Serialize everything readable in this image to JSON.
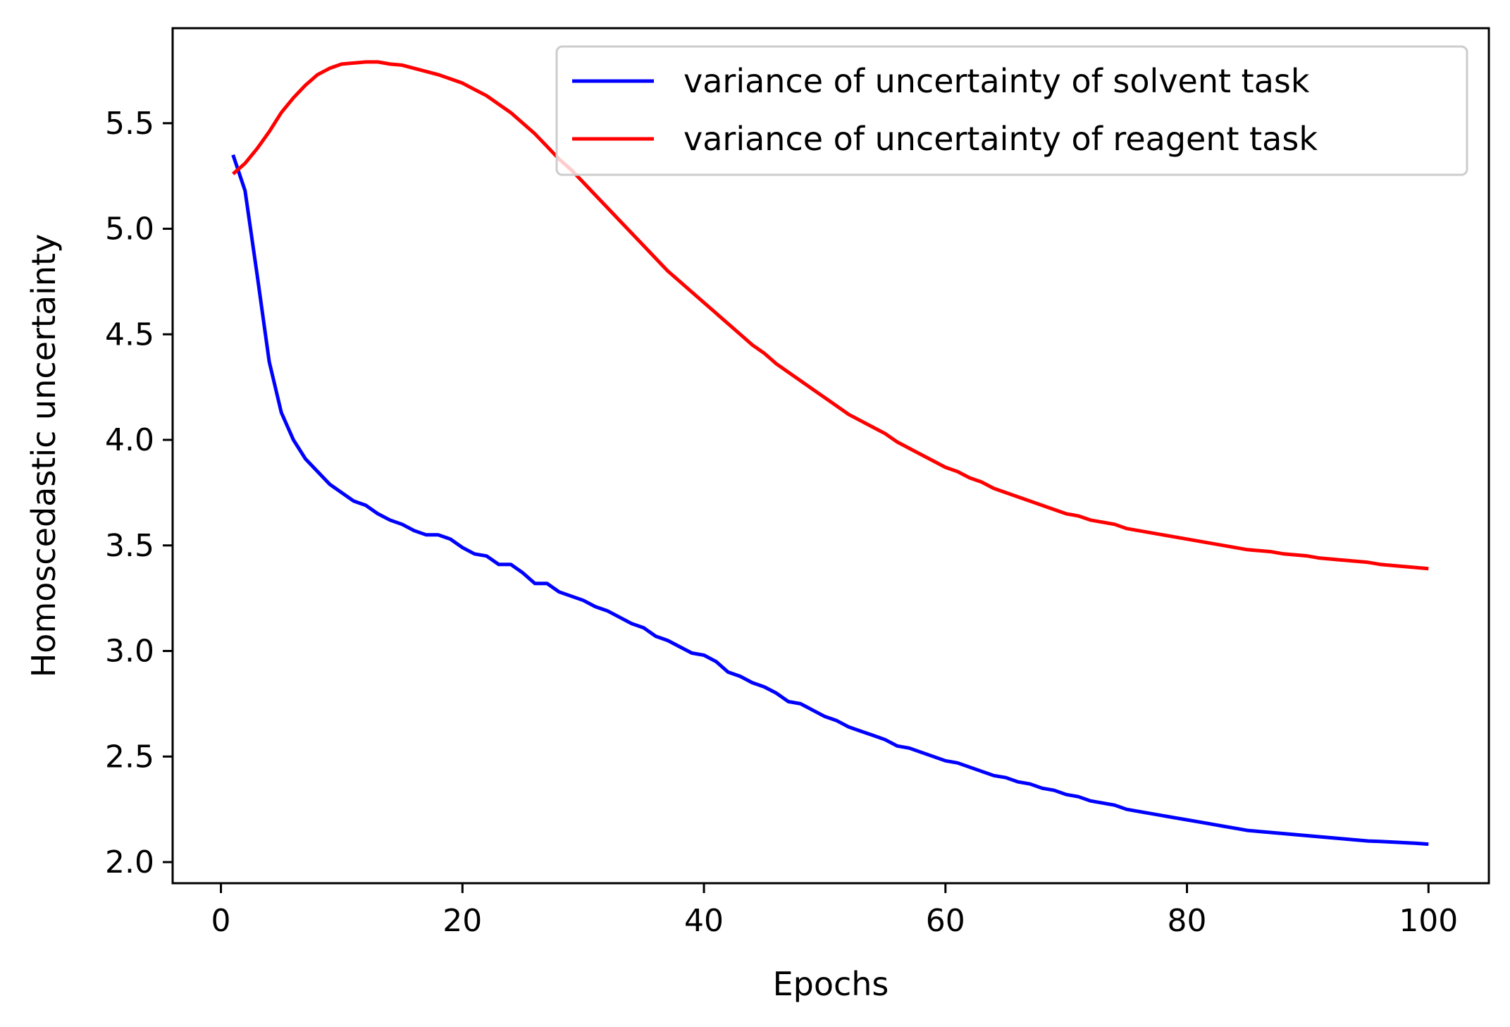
{
  "chart_data": {
    "type": "line",
    "title": "",
    "xlabel": "Epochs",
    "ylabel": "Homoscedastic uncertainty",
    "xlim": [
      -4,
      105
    ],
    "ylim": [
      1.9,
      5.95
    ],
    "x_ticks": [
      0,
      20,
      40,
      60,
      80,
      100
    ],
    "x_tick_labels": [
      "0",
      "20",
      "40",
      "60",
      "80",
      "100"
    ],
    "y_ticks": [
      2.0,
      2.5,
      3.0,
      3.5,
      4.0,
      4.5,
      5.0,
      5.5
    ],
    "y_tick_labels": [
      "2.0",
      "2.5",
      "3.0",
      "3.5",
      "4.0",
      "4.5",
      "5.0",
      "5.5"
    ],
    "grid": false,
    "legend_position": "top-right",
    "series": [
      {
        "name": "variance of uncertainty of solvent task",
        "color": "#0000ff",
        "x": [
          1,
          2,
          3,
          4,
          5,
          6,
          7,
          8,
          9,
          10,
          11,
          12,
          13,
          14,
          15,
          16,
          17,
          18,
          19,
          20,
          21,
          22,
          23,
          24,
          25,
          26,
          27,
          28,
          29,
          30,
          31,
          32,
          33,
          34,
          35,
          36,
          37,
          38,
          39,
          40,
          41,
          42,
          43,
          44,
          45,
          46,
          47,
          48,
          49,
          50,
          51,
          52,
          53,
          54,
          55,
          56,
          57,
          58,
          59,
          60,
          61,
          62,
          63,
          64,
          65,
          66,
          67,
          68,
          69,
          70,
          71,
          72,
          73,
          74,
          75,
          76,
          77,
          78,
          79,
          80,
          81,
          82,
          83,
          84,
          85,
          86,
          87,
          88,
          89,
          90,
          91,
          92,
          93,
          94,
          95,
          96,
          97,
          98,
          99,
          100
        ],
        "y": [
          5.35,
          5.18,
          4.78,
          4.37,
          4.13,
          4.0,
          3.91,
          3.85,
          3.79,
          3.75,
          3.71,
          3.69,
          3.65,
          3.62,
          3.6,
          3.57,
          3.55,
          3.55,
          3.53,
          3.49,
          3.46,
          3.45,
          3.41,
          3.41,
          3.37,
          3.32,
          3.32,
          3.28,
          3.26,
          3.24,
          3.21,
          3.19,
          3.16,
          3.13,
          3.11,
          3.07,
          3.05,
          3.02,
          2.99,
          2.98,
          2.95,
          2.9,
          2.88,
          2.85,
          2.83,
          2.8,
          2.76,
          2.75,
          2.72,
          2.69,
          2.67,
          2.64,
          2.62,
          2.6,
          2.58,
          2.55,
          2.54,
          2.52,
          2.5,
          2.48,
          2.47,
          2.45,
          2.43,
          2.41,
          2.4,
          2.38,
          2.37,
          2.35,
          2.34,
          2.32,
          2.31,
          2.29,
          2.28,
          2.27,
          2.25,
          2.24,
          2.23,
          2.22,
          2.21,
          2.2,
          2.19,
          2.18,
          2.17,
          2.16,
          2.15,
          2.145,
          2.14,
          2.135,
          2.13,
          2.125,
          2.12,
          2.115,
          2.11,
          2.105,
          2.1,
          2.098,
          2.095,
          2.092,
          2.089,
          2.085
        ]
      },
      {
        "name": "variance of uncertainty of reagent task",
        "color": "#ff0000",
        "x": [
          1,
          2,
          3,
          4,
          5,
          6,
          7,
          8,
          9,
          10,
          11,
          12,
          13,
          14,
          15,
          16,
          17,
          18,
          19,
          20,
          21,
          22,
          23,
          24,
          25,
          26,
          27,
          28,
          29,
          30,
          31,
          32,
          33,
          34,
          35,
          36,
          37,
          38,
          39,
          40,
          41,
          42,
          43,
          44,
          45,
          46,
          47,
          48,
          49,
          50,
          51,
          52,
          53,
          54,
          55,
          56,
          57,
          58,
          59,
          60,
          61,
          62,
          63,
          64,
          65,
          66,
          67,
          68,
          69,
          70,
          71,
          72,
          73,
          74,
          75,
          76,
          77,
          78,
          79,
          80,
          81,
          82,
          83,
          84,
          85,
          86,
          87,
          88,
          89,
          90,
          91,
          92,
          93,
          94,
          95,
          96,
          97,
          98,
          99,
          100
        ],
        "y": [
          5.26,
          5.31,
          5.38,
          5.46,
          5.55,
          5.62,
          5.68,
          5.73,
          5.76,
          5.78,
          5.785,
          5.79,
          5.79,
          5.78,
          5.775,
          5.76,
          5.745,
          5.73,
          5.71,
          5.69,
          5.66,
          5.63,
          5.59,
          5.55,
          5.5,
          5.45,
          5.39,
          5.33,
          5.28,
          5.22,
          5.16,
          5.1,
          5.04,
          4.98,
          4.92,
          4.86,
          4.8,
          4.75,
          4.7,
          4.65,
          4.6,
          4.55,
          4.5,
          4.45,
          4.41,
          4.36,
          4.32,
          4.28,
          4.24,
          4.2,
          4.16,
          4.12,
          4.09,
          4.06,
          4.03,
          3.99,
          3.96,
          3.93,
          3.9,
          3.87,
          3.85,
          3.82,
          3.8,
          3.77,
          3.75,
          3.73,
          3.71,
          3.69,
          3.67,
          3.65,
          3.64,
          3.62,
          3.61,
          3.6,
          3.58,
          3.57,
          3.56,
          3.55,
          3.54,
          3.53,
          3.52,
          3.51,
          3.5,
          3.49,
          3.48,
          3.475,
          3.47,
          3.46,
          3.455,
          3.45,
          3.44,
          3.435,
          3.43,
          3.425,
          3.42,
          3.41,
          3.405,
          3.4,
          3.395,
          3.39
        ]
      }
    ]
  }
}
